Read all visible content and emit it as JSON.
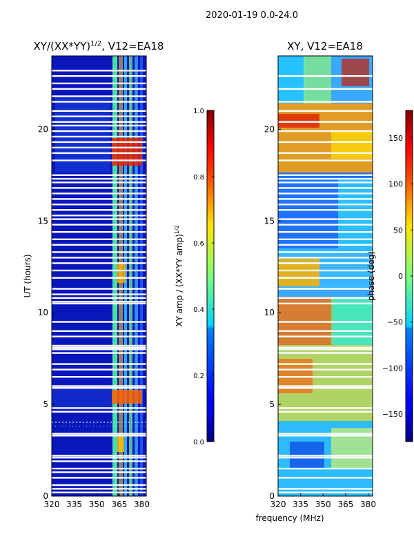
{
  "chart_data": {
    "suptitle": "2020-01-19 0.0-24.0",
    "xlabel": "frequency (MHz)",
    "ylabel": "UT (hours)",
    "x_range": [
      320,
      383
    ],
    "y_range": [
      0,
      24
    ],
    "x_ticks": [
      320,
      335,
      350,
      365,
      380
    ],
    "y_ticks": [
      0,
      5,
      10,
      15,
      20
    ],
    "panels": [
      {
        "type": "heatmap",
        "title": "XY/(XX*YY)",
        "title_sup": "1/2",
        "title_suffix": ", V12=EA18",
        "colorbar": {
          "label": "XY amp / (XX*YY amp)",
          "label_sup": "1/2",
          "range": [
            0.0,
            1.0
          ],
          "ticks": [
            "0.0",
            "0.2",
            "0.4",
            "0.6",
            "0.8",
            "1.0"
          ],
          "tick_values": [
            0.0,
            0.2,
            0.4,
            0.6,
            0.8,
            1.0
          ]
        },
        "flagged_rows_ut": [
          0.2,
          0.4,
          0.6,
          1.0,
          1.3,
          1.5,
          1.9,
          2.1,
          2.2,
          3.3,
          3.4,
          4.6,
          4.8,
          5.9,
          6.0,
          6.5,
          6.9,
          7.2,
          7.8,
          8.0,
          8.1,
          8.2,
          8.7,
          9.0,
          9.5,
          10.5,
          10.6,
          10.8,
          11.0,
          11.3,
          11.9,
          12.3,
          12.7,
          13.0,
          13.3,
          13.7,
          14.0,
          14.4,
          14.8,
          15.1,
          15.3,
          15.6,
          15.9,
          16.2,
          16.5,
          16.8,
          17.1,
          17.3,
          17.5,
          18.3,
          18.7,
          19.0,
          19.3,
          19.6,
          19.9,
          20.2,
          20.4,
          20.7,
          21.0,
          21.5,
          21.8,
          22.2,
          22.5,
          22.9,
          23.2
        ]
      },
      {
        "type": "heatmap",
        "title": "XY, V12=EA18",
        "colorbar": {
          "label": "phase (deg)",
          "range": [
            -180,
            180
          ],
          "ticks": [
            "−150",
            "−100",
            "−50",
            "0",
            "50",
            "100",
            "150"
          ],
          "tick_values": [
            -150,
            -100,
            -50,
            0,
            50,
            100,
            150
          ]
        },
        "flagged_rows_ut": [
          0.2,
          0.4,
          1.0,
          1.5,
          2.1,
          2.2,
          3.3,
          3.4,
          4.6,
          4.8,
          5.9,
          6.0,
          6.5,
          6.9,
          7.2,
          7.8,
          8.0,
          8.1,
          8.7,
          9.0,
          9.5,
          10.5,
          10.8,
          11.3,
          11.9,
          12.3,
          12.7,
          13.0,
          13.3,
          13.7,
          14.0,
          14.4,
          14.8,
          15.1,
          15.6,
          15.9,
          16.2,
          16.5,
          16.8,
          17.1,
          17.3,
          17.5,
          18.3,
          18.7,
          19.3,
          19.9,
          20.4,
          21.0,
          21.5,
          22.2,
          22.9
        ]
      }
    ]
  }
}
